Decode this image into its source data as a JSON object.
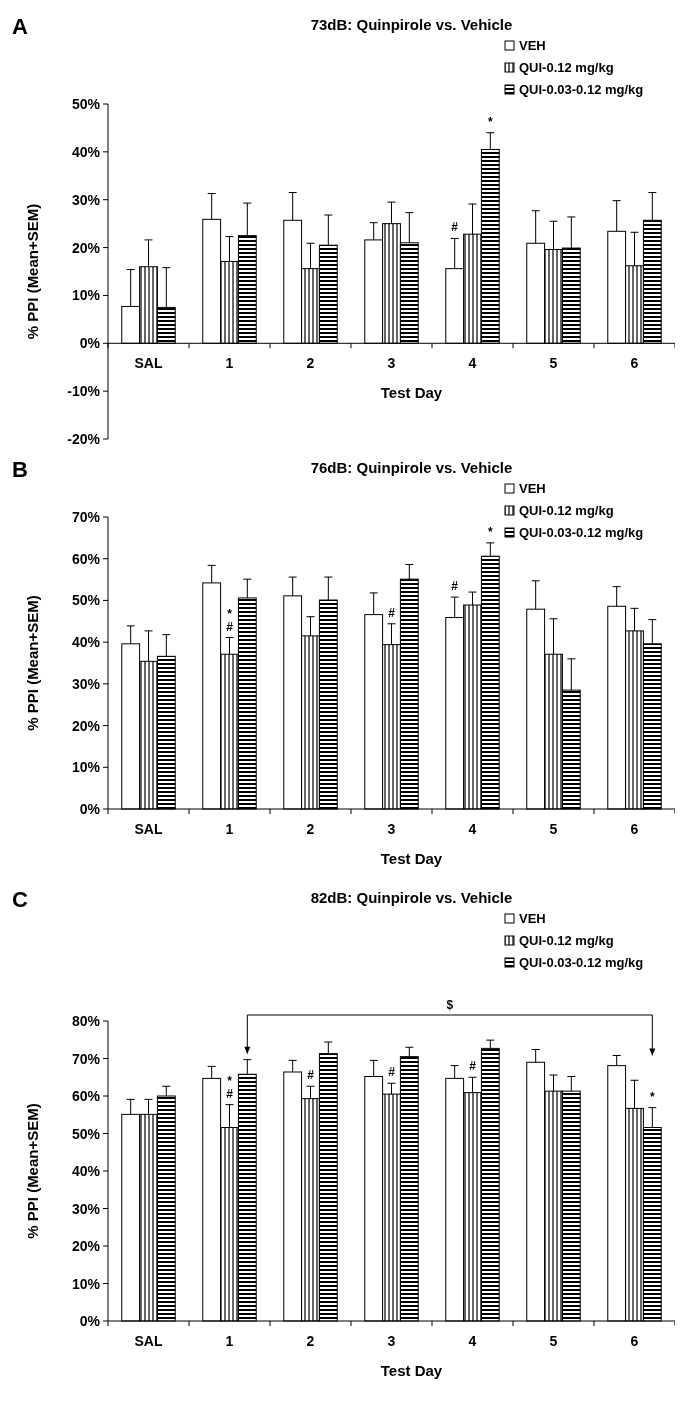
{
  "chart_data": [
    {
      "type": "bar",
      "title": "73dB: Quinpirole vs. Vehicle",
      "xlabel": "Test Day",
      "ylabel": "% PPI (Mean+SEM)",
      "categories": [
        "SAL",
        "1",
        "2",
        "3",
        "4",
        "5",
        "6"
      ],
      "series": [
        {
          "name": "VEH",
          "color": "#ffffff",
          "values": [
            7.7,
            25.9,
            25.7,
            21.6,
            15.6,
            20.9,
            23.4
          ],
          "errors": [
            [
              7.7,
              15.4
            ],
            [
              25.9,
              31.3
            ],
            [
              25.7,
              31.5
            ],
            [
              21.6,
              25.2
            ],
            [
              15.6,
              21.9
            ],
            [
              20.9,
              27.7
            ],
            [
              23.4,
              29.8
            ]
          ]
        },
        {
          "name": "QUI-0.12 mg/kg",
          "color": "#000000",
          "values": [
            16.0,
            17.1,
            15.6,
            25.0,
            22.8,
            19.6,
            16.2
          ],
          "errors": [
            [
              16.0,
              21.6
            ],
            [
              17.1,
              22.3
            ],
            [
              15.6,
              20.9
            ],
            [
              25.0,
              29.5
            ],
            [
              22.8,
              29.1
            ],
            [
              19.6,
              25.5
            ],
            [
              16.2,
              23.2
            ]
          ]
        },
        {
          "name": "QUI-0.03-0.12 mg/kg",
          "color": "#000000",
          "values": [
            7.5,
            22.5,
            20.5,
            21.0,
            40.5,
            19.9,
            25.7
          ],
          "errors": [
            [
              7.5,
              15.8
            ],
            [
              22.5,
              29.3
            ],
            [
              20.5,
              26.8
            ],
            [
              21.0,
              27.3
            ],
            [
              40.5,
              44.0
            ],
            [
              19.9,
              26.4
            ],
            [
              25.7,
              31.5
            ]
          ]
        }
      ],
      "ylim": [
        -20,
        50
      ],
      "yticks": [
        {
          "value": -20,
          "label": "-20%"
        },
        {
          "value": -10,
          "label": "-10%"
        },
        {
          "value": 0,
          "label": "0%"
        },
        {
          "value": 10,
          "label": "10%"
        },
        {
          "value": 20,
          "label": "20%"
        },
        {
          "value": 30,
          "label": "30%"
        },
        {
          "value": 40,
          "label": "40%"
        },
        {
          "value": 50,
          "label": "50%"
        }
      ],
      "legend": "top right",
      "annotations": [
        "A",
        "#",
        "*"
      ]
    },
    {
      "type": "bar",
      "title": "76dB: Quinpirole vs. Vehicle",
      "xlabel": "Test Day",
      "ylabel": "% PPI (Mean+SEM)",
      "categories": [
        "SAL",
        "1",
        "2",
        "3",
        "4",
        "5",
        "6"
      ],
      "series": [
        {
          "name": "VEH",
          "color": "#ffffff",
          "values": [
            39.6,
            54.2,
            51.1,
            46.6,
            45.9,
            47.9,
            48.6
          ],
          "errors": [
            [
              39.6,
              43.9
            ],
            [
              54.2,
              58.4
            ],
            [
              51.1,
              55.6
            ],
            [
              46.6,
              51.8
            ],
            [
              45.9,
              50.8
            ],
            [
              47.9,
              54.7
            ],
            [
              48.6,
              53.3
            ]
          ]
        },
        {
          "name": "QUI-0.12 mg/kg",
          "color": "#000000",
          "values": [
            35.4,
            37.1,
            41.5,
            39.4,
            48.9,
            37.1,
            42.7
          ],
          "errors": [
            [
              35.4,
              42.7
            ],
            [
              37.1,
              41.1
            ],
            [
              41.5,
              46.1
            ],
            [
              39.4,
              44.4
            ],
            [
              48.9,
              52.0
            ],
            [
              37.1,
              45.6
            ],
            [
              42.7,
              48.1
            ]
          ]
        },
        {
          "name": "QUI-0.03-0.12 mg/kg",
          "color": "#000000",
          "values": [
            36.6,
            50.6,
            50.1,
            55.1,
            60.6,
            28.5,
            39.6
          ],
          "errors": [
            [
              36.6,
              41.8
            ],
            [
              50.6,
              55.1
            ],
            [
              50.1,
              55.6
            ],
            [
              55.1,
              58.6
            ],
            [
              60.6,
              63.8
            ],
            [
              28.5,
              36.0
            ],
            [
              39.6,
              45.4
            ]
          ]
        }
      ],
      "ylim": [
        0,
        70
      ],
      "yticks": [
        {
          "value": 0,
          "label": "0%"
        },
        {
          "value": 10,
          "label": "10%"
        },
        {
          "value": 20,
          "label": "20%"
        },
        {
          "value": 30,
          "label": "30%"
        },
        {
          "value": 40,
          "label": "40%"
        },
        {
          "value": 50,
          "label": "50%"
        },
        {
          "value": 60,
          "label": "60%"
        },
        {
          "value": 70,
          "label": "70%"
        }
      ],
      "legend": "top right",
      "annotations": [
        "B",
        "#",
        "*",
        "#",
        "#",
        "*"
      ]
    },
    {
      "type": "bar",
      "title": "82dB: Quinpirole vs. Vehicle",
      "xlabel": "Test Day",
      "ylabel": "% PPI (Mean+SEM)",
      "categories": [
        "SAL",
        "1",
        "2",
        "3",
        "4",
        "5",
        "6"
      ],
      "series": [
        {
          "name": "VEH",
          "color": "#ffffff",
          "values": [
            55.1,
            64.7,
            66.4,
            65.2,
            64.7,
            69.0,
            68.1
          ],
          "errors": [
            [
              55.1,
              59.1
            ],
            [
              64.7,
              67.9
            ],
            [
              66.4,
              69.5
            ],
            [
              65.2,
              69.5
            ],
            [
              64.7,
              68.1
            ],
            [
              69.0,
              72.4
            ],
            [
              68.1,
              70.8
            ]
          ]
        },
        {
          "name": "QUI-0.12 mg/kg",
          "color": "#000000",
          "values": [
            55.1,
            51.6,
            59.3,
            60.5,
            60.9,
            61.3,
            56.7
          ],
          "errors": [
            [
              55.1,
              59.1
            ],
            [
              51.6,
              57.7
            ],
            [
              59.3,
              62.6
            ],
            [
              60.5,
              63.4
            ],
            [
              60.9,
              65.0
            ],
            [
              61.3,
              65.6
            ],
            [
              56.7,
              64.2
            ]
          ]
        },
        {
          "name": "QUI-0.03-0.12 mg/kg",
          "color": "#000000",
          "values": [
            60.0,
            65.8,
            71.3,
            70.5,
            72.7,
            61.3,
            51.6
          ],
          "errors": [
            [
              60.0,
              62.6
            ],
            [
              65.8,
              69.7
            ],
            [
              71.3,
              74.4
            ],
            [
              70.5,
              73.0
            ],
            [
              72.7,
              74.9
            ],
            [
              61.3,
              65.2
            ],
            [
              51.6,
              56.9
            ]
          ]
        }
      ],
      "ylim": [
        0,
        80
      ],
      "yticks": [
        {
          "value": 0,
          "label": "0%"
        },
        {
          "value": 10,
          "label": "10%"
        },
        {
          "value": 20,
          "label": "20%"
        },
        {
          "value": 30,
          "label": "30%"
        },
        {
          "value": 40,
          "label": "40%"
        },
        {
          "value": 50,
          "label": "50%"
        },
        {
          "value": 60,
          "label": "60%"
        },
        {
          "value": 70,
          "label": "70%"
        },
        {
          "value": 80,
          "label": "80%"
        }
      ],
      "legend": "top right",
      "annotations": [
        "C",
        "$",
        "#",
        "*",
        "#",
        "#",
        "#",
        "*"
      ]
    }
  ]
}
